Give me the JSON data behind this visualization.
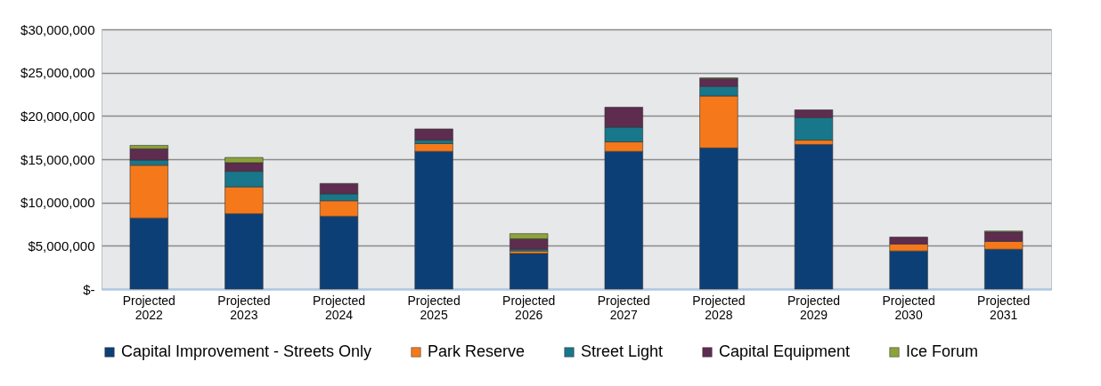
{
  "chart_data": {
    "type": "bar",
    "stacked": true,
    "categories": [
      "Projected 2022",
      "Projected 2023",
      "Projected 2024",
      "Projected 2025",
      "Projected 2026",
      "Projected 2027",
      "Projected 2028",
      "Projected 2029",
      "Projected 2030",
      "Projected 2031"
    ],
    "series": [
      {
        "name": "Capital Improvement - Streets Only",
        "color": "#0d3f77",
        "values": [
          8200000,
          8700000,
          8400000,
          15900000,
          4100000,
          15900000,
          16300000,
          16700000,
          4400000,
          4600000
        ]
      },
      {
        "name": "Park Reserve",
        "color": "#f5791b",
        "values": [
          6100000,
          3100000,
          1800000,
          900000,
          300000,
          1100000,
          6000000,
          500000,
          800000,
          900000
        ]
      },
      {
        "name": "Street Light",
        "color": "#18778a",
        "values": [
          600000,
          1800000,
          800000,
          400000,
          200000,
          1700000,
          1100000,
          2600000,
          null,
          null
        ]
      },
      {
        "name": "Capital Equipment",
        "color": "#5d2c4e",
        "values": [
          1300000,
          1000000,
          1200000,
          1300000,
          1200000,
          2300000,
          900000,
          900000,
          800000,
          1100000
        ]
      },
      {
        "name": "Ice Forum",
        "color": "#8ba33a",
        "values": [
          400000,
          600000,
          null,
          null,
          600000,
          null,
          100000,
          null,
          null,
          100000
        ]
      }
    ],
    "ylim": [
      0,
      30000000
    ],
    "yticks": [
      {
        "value": 0,
        "label": "$-"
      },
      {
        "value": 5000000,
        "label": "$5,000,000"
      },
      {
        "value": 10000000,
        "label": "$10,000,000"
      },
      {
        "value": 15000000,
        "label": "$15,000,000"
      },
      {
        "value": 20000000,
        "label": "$20,000,000"
      },
      {
        "value": 25000000,
        "label": "$25,000,000"
      },
      {
        "value": 30000000,
        "label": "$30,000,000"
      }
    ],
    "grid": "y",
    "legend": "bottom"
  }
}
